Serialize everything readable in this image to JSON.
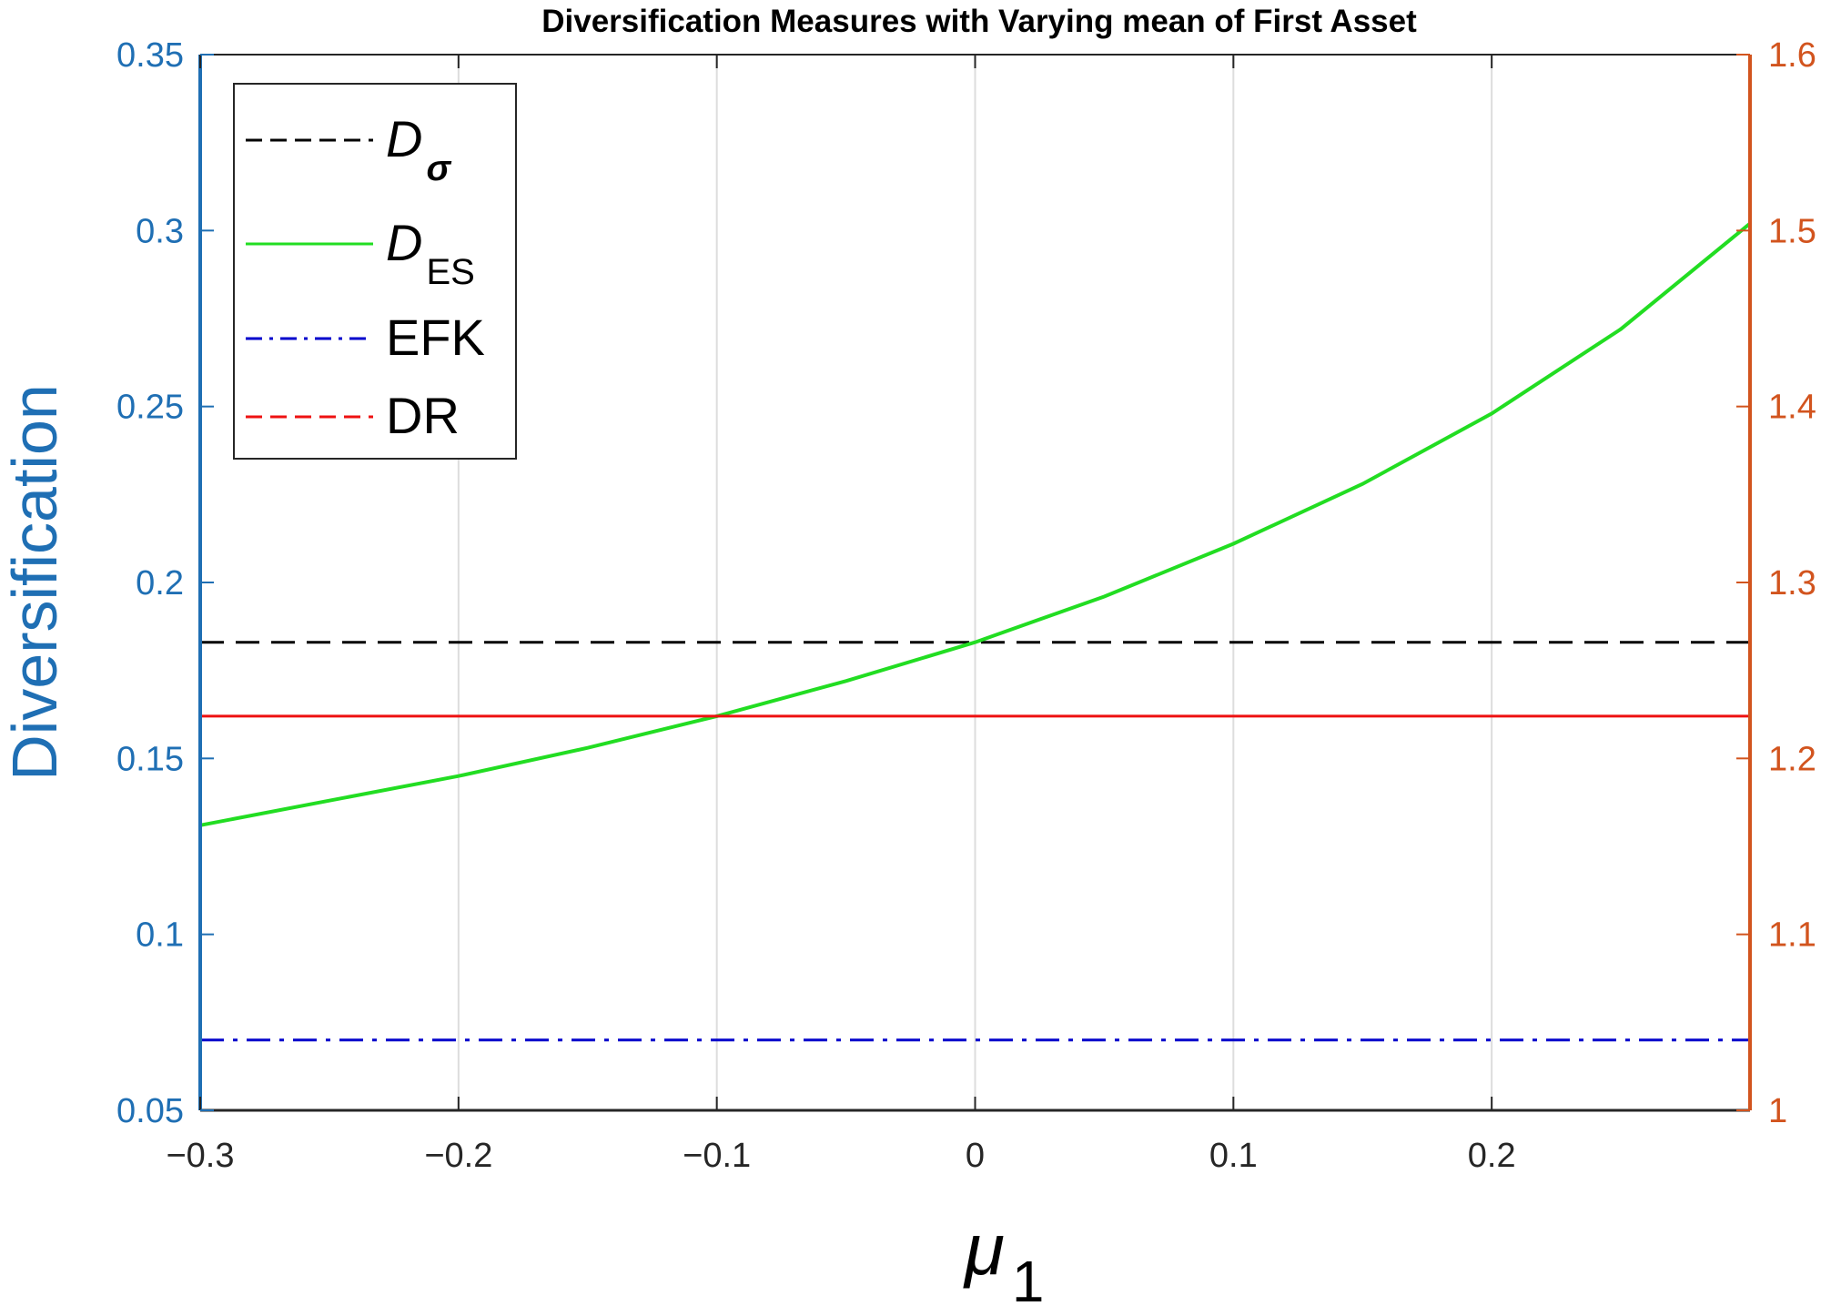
{
  "chart_data": {
    "type": "line",
    "title": "Diversification Measures with Varying mean of First Asset",
    "xlabel": "μ",
    "xlabel_sub": "1",
    "ylabel_left": "Diversification",
    "ylabel_right": "",
    "xlim": [
      -0.3,
      0.3
    ],
    "ylim_left": [
      0.05,
      0.35
    ],
    "ylim_right": [
      1.0,
      1.6
    ],
    "x_ticks": [
      -0.3,
      -0.2,
      -0.1,
      0,
      0.1,
      0.2
    ],
    "x_tick_labels": [
      "−0.3",
      "−0.2",
      "−0.1",
      "0",
      "0.1",
      "0.2"
    ],
    "y_left_ticks": [
      0.05,
      0.1,
      0.15,
      0.2,
      0.25,
      0.3,
      0.35
    ],
    "y_left_tick_labels": [
      "0.05",
      "0.1",
      "0.15",
      "0.2",
      "0.25",
      "0.3",
      "0.35"
    ],
    "y_right_ticks": [
      1.0,
      1.1,
      1.2,
      1.3,
      1.4,
      1.5,
      1.6
    ],
    "y_right_tick_labels": [
      "1",
      "1.1",
      "1.2",
      "1.3",
      "1.4",
      "1.5",
      "1.6"
    ],
    "grid": "vertical",
    "legend_position": "top-left",
    "colors": {
      "left_axis": "#1f6fb4",
      "right_axis": "#d2541e",
      "grid": "#dddddd"
    },
    "series": [
      {
        "name": "D",
        "name_sub": "σ",
        "axis": "left",
        "style": "dashed",
        "color": "#000000",
        "x": [
          -0.3,
          0.3
        ],
        "y": [
          0.183,
          0.183
        ]
      },
      {
        "name": "D",
        "name_sub": "ES",
        "axis": "left",
        "style": "solid",
        "color": "#22dd22",
        "x": [
          -0.3,
          -0.25,
          -0.2,
          -0.15,
          -0.1,
          -0.05,
          0,
          0.05,
          0.1,
          0.15,
          0.2,
          0.25,
          0.3
        ],
        "y": [
          0.131,
          0.138,
          0.145,
          0.153,
          0.162,
          0.172,
          0.183,
          0.196,
          0.211,
          0.228,
          0.248,
          0.272,
          0.302
        ]
      },
      {
        "name": "EFK",
        "axis": "left",
        "style": "dashdot",
        "color": "#0000cc",
        "x": [
          -0.3,
          0.3
        ],
        "y": [
          0.07,
          0.07
        ]
      },
      {
        "name": "DR",
        "axis": "right",
        "style": "solid",
        "legend_style": "dashed",
        "color": "#ee1111",
        "x": [
          -0.3,
          0.3
        ],
        "y": [
          1.224,
          1.224
        ]
      }
    ]
  }
}
